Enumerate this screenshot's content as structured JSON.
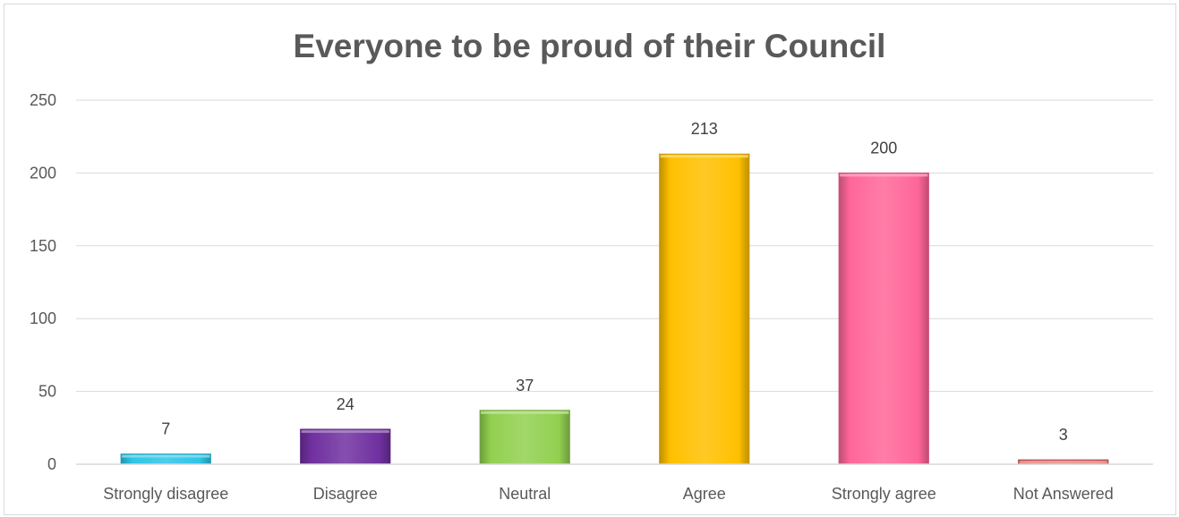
{
  "chart_data": {
    "type": "bar",
    "title": "Everyone to be proud of their Council",
    "xlabel": "",
    "ylabel": "",
    "categories": [
      "Strongly disagree",
      "Disagree",
      "Neutral",
      "Agree",
      "Strongly agree",
      "Not Answered"
    ],
    "values": [
      7,
      24,
      37,
      213,
      200,
      3
    ],
    "data_labels": [
      "7",
      "24",
      "37",
      "213",
      "200",
      "3"
    ],
    "colors": [
      "#2ec4e6",
      "#7030a0",
      "#92d050",
      "#ffc000",
      "#ff6699",
      "#e06060"
    ],
    "ylim": [
      0,
      250
    ],
    "yticks": [
      0,
      50,
      100,
      150,
      200,
      250
    ],
    "ytick_labels": [
      "0",
      "50",
      "100",
      "150",
      "200",
      "250"
    ],
    "grid": true,
    "legend": "none",
    "gridline_color": "#d9d9d9",
    "axis_color": "#d9d9d9"
  }
}
